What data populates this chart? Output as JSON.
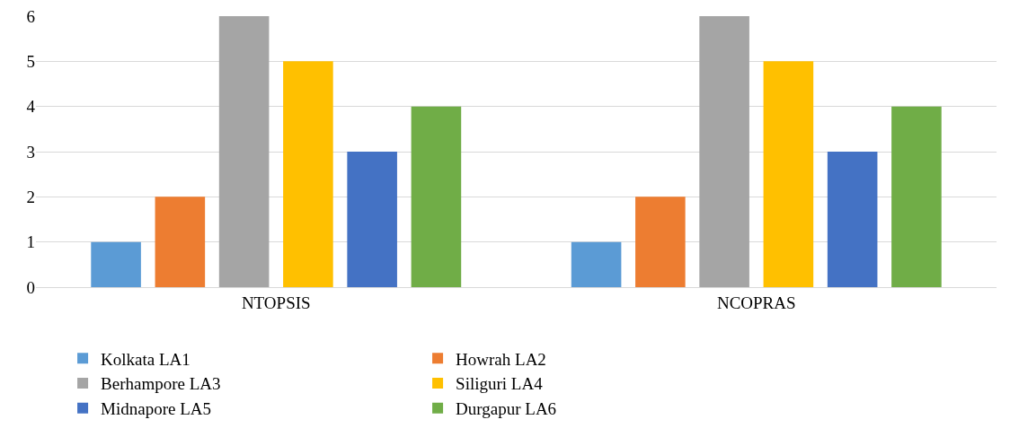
{
  "chart_data": {
    "type": "bar",
    "categories": [
      "NTOPSIS",
      "NCOPRAS"
    ],
    "series": [
      {
        "name": "Kolkata LA1",
        "color": "#5b9bd5",
        "values": [
          1,
          1
        ]
      },
      {
        "name": "Howrah LA2",
        "color": "#ed7d31",
        "values": [
          2,
          2
        ]
      },
      {
        "name": "Berhampore LA3",
        "color": "#a5a5a5",
        "values": [
          6,
          6
        ]
      },
      {
        "name": "Siliguri LA4",
        "color": "#ffc000",
        "values": [
          5,
          5
        ]
      },
      {
        "name": "Midnapore LA5",
        "color": "#4472c4",
        "values": [
          3,
          3
        ]
      },
      {
        "name": "Durgapur LA6",
        "color": "#70ad47",
        "values": [
          4,
          4
        ]
      }
    ],
    "ylim": [
      0,
      6
    ],
    "yticks": [
      0,
      1,
      2,
      3,
      4,
      5,
      6
    ],
    "grid": "y",
    "legend": "bottom"
  }
}
